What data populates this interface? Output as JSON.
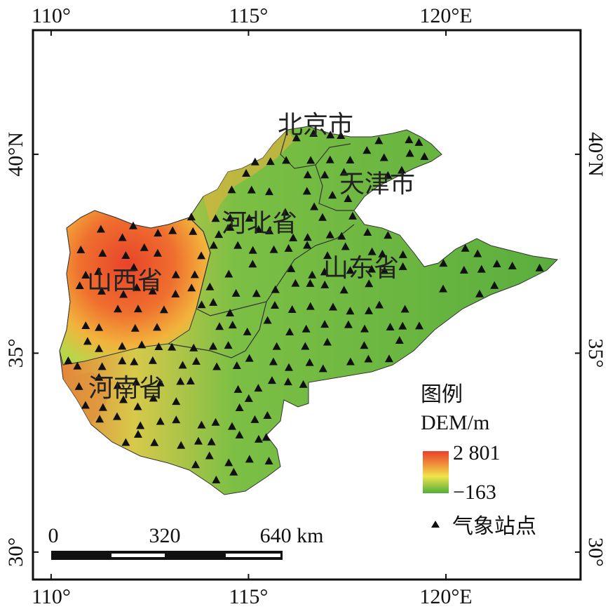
{
  "map": {
    "xlim": [
      109.54,
      123.41
    ],
    "ylim": [
      29.31,
      43.12
    ],
    "xticks": [
      {
        "value": 110,
        "label": "110°"
      },
      {
        "value": 115,
        "label": "115°"
      },
      {
        "value": 120,
        "label": "120°E"
      }
    ],
    "yticks": [
      {
        "value": 40,
        "label": "40°N"
      },
      {
        "value": 35,
        "label": "35°"
      },
      {
        "value": 30,
        "label": "30°"
      }
    ],
    "provinces": [
      "北京市",
      "天津市",
      "河北省",
      "山东省",
      "山西省",
      "河南省"
    ],
    "legend": {
      "title": "图例",
      "subtitle": "DEM/m",
      "max_label": "2 801",
      "min_label": "−163",
      "station_label": "气象站点"
    },
    "scale_bar": {
      "labels": [
        "0",
        "320",
        "640 km"
      ]
    }
  }
}
